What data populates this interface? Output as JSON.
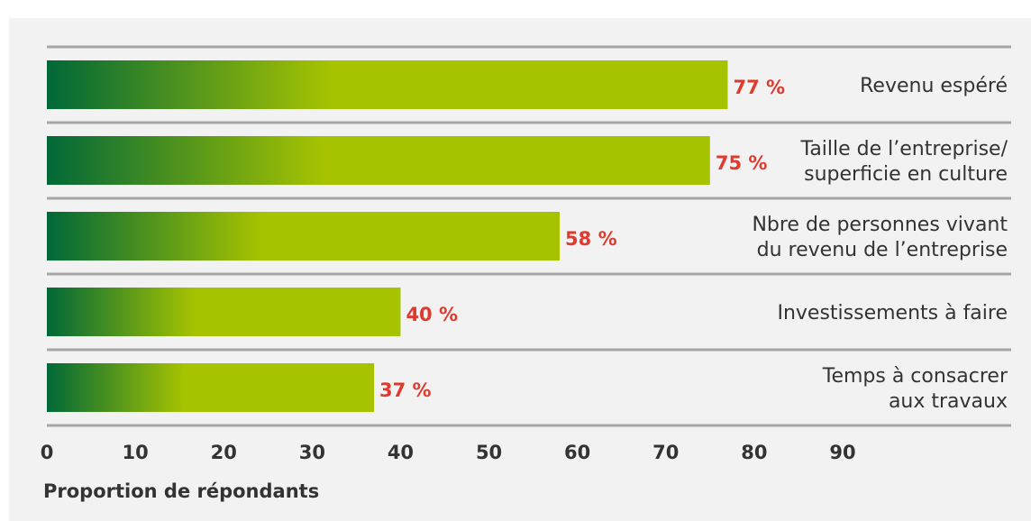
{
  "chart_data": {
    "type": "hbar",
    "categories": [
      "Revenu espéré",
      "Taille de l’entreprise/\nsuperficie en culture",
      "Nbre de personnes vivant\ndu revenu de l’entreprise",
      "Investissements à faire",
      "Temps à consacrer\naux travaux"
    ],
    "values": [
      77,
      75,
      58,
      40,
      37
    ],
    "value_labels": [
      "77 %",
      "75 %",
      "58 %",
      "40 %",
      "37 %"
    ],
    "color": "#a7c300",
    "xlabel": "Proportion de répondants",
    "xlim": [
      0,
      90
    ],
    "xticks": [
      0,
      10,
      20,
      30,
      40,
      50,
      60,
      70,
      80,
      90
    ]
  }
}
